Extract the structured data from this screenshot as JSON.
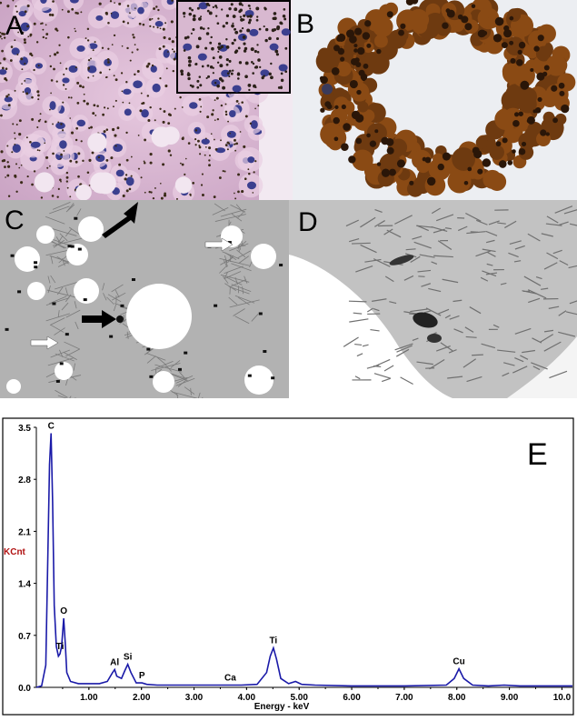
{
  "panels": {
    "a": {
      "letter": "A"
    },
    "b": {
      "letter": "B"
    },
    "c": {
      "letter": "C"
    },
    "d": {
      "letter": "D"
    },
    "e": {
      "letter": "E"
    }
  },
  "colors": {
    "he_pink": "#d9b3cf",
    "nuclei": "#3b3f8f",
    "dab_brown": "#8a4a14",
    "em_gray": "#b4b4b4",
    "spectrum_line": "#1a1aa8",
    "ylabel": "#b01010"
  },
  "chart_data": {
    "type": "line",
    "title": "",
    "xlabel": "Energy - keV",
    "ylabel": "KCnt",
    "xlim": [
      0.0,
      10.2
    ],
    "ylim": [
      0.0,
      3.5
    ],
    "xticks": [
      "1.00",
      "2.00",
      "3.00",
      "4.00",
      "5.00",
      "6.00",
      "7.00",
      "8.00",
      "9.00",
      "10.0"
    ],
    "yticks": [
      "0.0",
      "0.7",
      "1.4",
      "2.1",
      "2.8",
      "3.5"
    ],
    "peaks": [
      {
        "label": "C",
        "x": 0.28,
        "y": 3.42
      },
      {
        "label": "O",
        "x": 0.52,
        "y": 0.93
      },
      {
        "label": "Ti",
        "x": 0.45,
        "y": 0.45
      },
      {
        "label": "Al",
        "x": 1.49,
        "y": 0.24
      },
      {
        "label": "Si",
        "x": 1.74,
        "y": 0.31
      },
      {
        "label": "P",
        "x": 2.01,
        "y": 0.06
      },
      {
        "label": "Ca",
        "x": 3.69,
        "y": 0.03
      },
      {
        "label": "Ti",
        "x": 4.51,
        "y": 0.53
      },
      {
        "label": "Cu",
        "x": 8.04,
        "y": 0.25
      }
    ],
    "x": [
      0.0,
      0.1,
      0.18,
      0.22,
      0.25,
      0.28,
      0.31,
      0.34,
      0.38,
      0.42,
      0.45,
      0.48,
      0.52,
      0.55,
      0.58,
      0.65,
      0.8,
      1.0,
      1.2,
      1.35,
      1.45,
      1.49,
      1.53,
      1.62,
      1.68,
      1.74,
      1.8,
      1.9,
      2.01,
      2.1,
      2.3,
      2.6,
      3.0,
      3.4,
      3.69,
      3.9,
      4.2,
      4.38,
      4.45,
      4.51,
      4.57,
      4.65,
      4.8,
      4.93,
      5.05,
      5.3,
      6.0,
      7.0,
      7.8,
      7.95,
      8.04,
      8.13,
      8.3,
      8.6,
      8.9,
      9.2,
      9.6,
      10.2
    ],
    "series": [
      {
        "values": [
          0.0,
          0.02,
          0.3,
          1.8,
          3.0,
          3.42,
          2.5,
          1.1,
          0.55,
          0.42,
          0.45,
          0.55,
          0.93,
          0.6,
          0.2,
          0.08,
          0.05,
          0.05,
          0.05,
          0.08,
          0.2,
          0.24,
          0.15,
          0.12,
          0.22,
          0.31,
          0.2,
          0.06,
          0.06,
          0.04,
          0.03,
          0.03,
          0.03,
          0.03,
          0.03,
          0.03,
          0.04,
          0.2,
          0.42,
          0.53,
          0.38,
          0.12,
          0.05,
          0.08,
          0.04,
          0.03,
          0.02,
          0.02,
          0.03,
          0.12,
          0.25,
          0.12,
          0.03,
          0.02,
          0.03,
          0.02,
          0.02,
          0.02
        ]
      }
    ],
    "grid": false,
    "legend": "none"
  }
}
